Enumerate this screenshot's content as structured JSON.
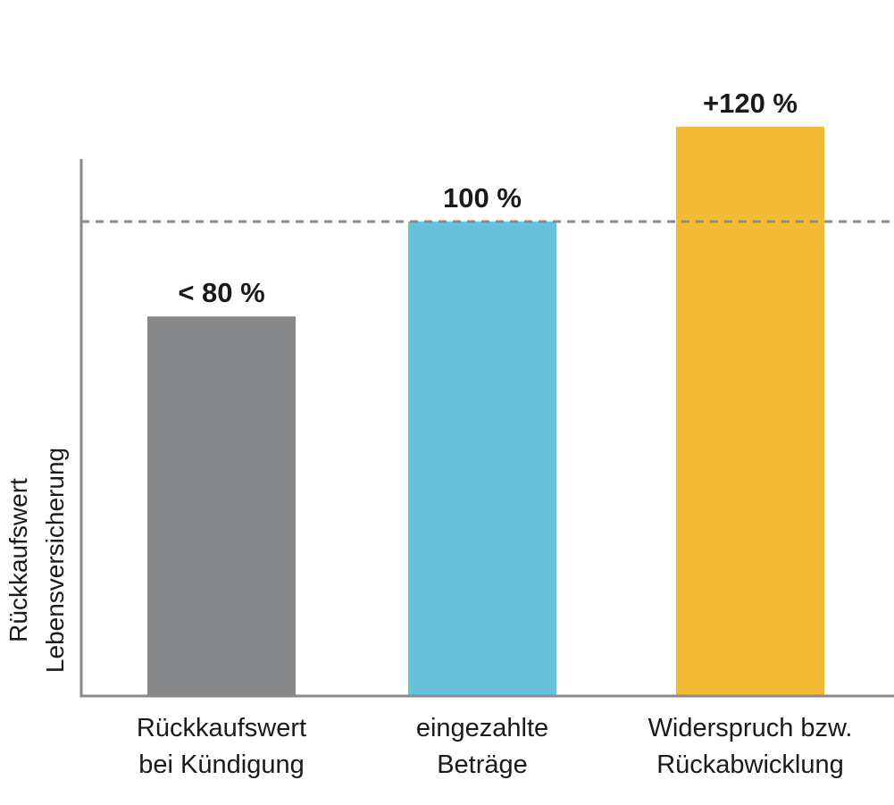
{
  "chart_data": {
    "type": "bar",
    "categories": [
      [
        "Rückkaufswert",
        "bei Kündigung"
      ],
      [
        "eingezahlte",
        "Beträge"
      ],
      [
        "Widerspruch bzw.",
        "Rückabwicklung"
      ]
    ],
    "values": [
      80,
      100,
      120
    ],
    "value_labels": [
      "< 80 %",
      "100 %",
      "+120 %"
    ],
    "colors": [
      "#87888a",
      "#66c1da",
      "#f3bb33"
    ],
    "ylabel": [
      "Rückkaufswert",
      "Lebensversicherung"
    ],
    "reference_line": {
      "value": 100,
      "style": "dashed",
      "color": "#8a8a8a"
    },
    "axis_color": "#8a8a8a",
    "ylim": [
      0,
      125
    ],
    "grid": false,
    "legend": "none"
  }
}
